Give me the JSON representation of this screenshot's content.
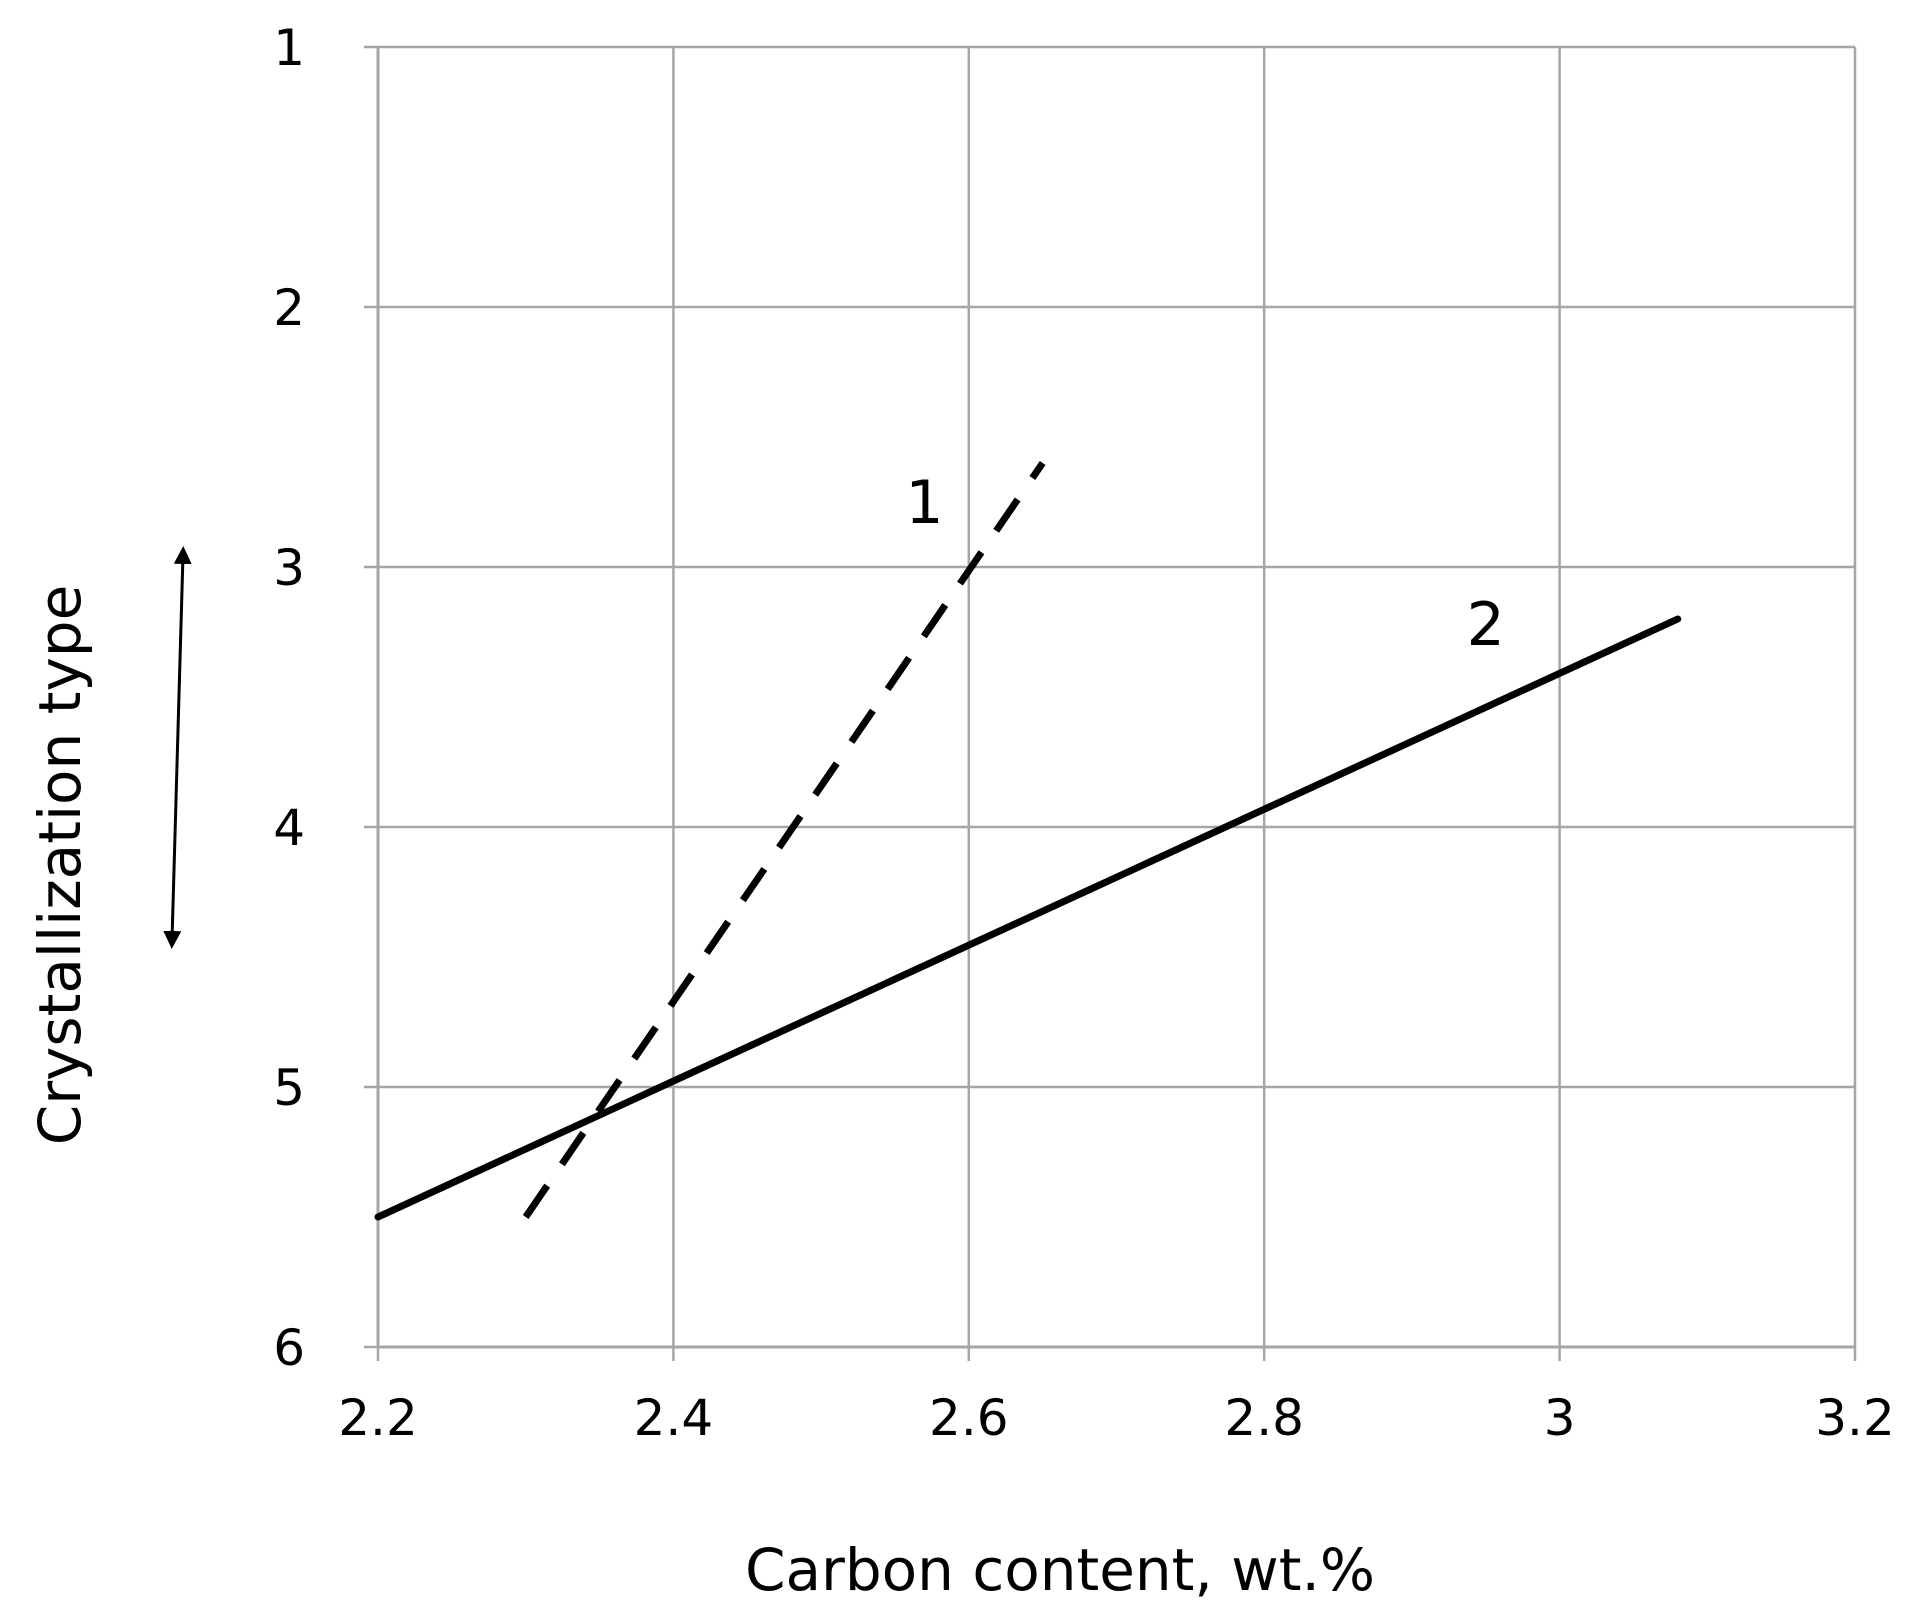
{
  "chart_data": {
    "type": "line",
    "xlabel": "Carbon content, wt.%",
    "ylabel": "Crystallization type",
    "xlim": [
      2.2,
      3.2
    ],
    "ylim": [
      1,
      6
    ],
    "y_inverted": true,
    "grid": true,
    "x_ticks": [
      "2.2",
      "2.4",
      "2.6",
      "2.8",
      "3",
      "3.2"
    ],
    "y_ticks": [
      "1",
      "2",
      "3",
      "4",
      "5",
      "6"
    ],
    "series": [
      {
        "label": "1",
        "style": "dashed",
        "color": "#000000",
        "x": [
          2.3,
          2.65
        ],
        "y": [
          5.5,
          2.6
        ]
      },
      {
        "label": "2",
        "style": "solid",
        "color": "#000000",
        "x": [
          2.2,
          3.08
        ],
        "y": [
          5.5,
          3.2
        ]
      }
    ],
    "annotations": [
      {
        "type": "double-arrow",
        "orientation": "vertical",
        "description": "up/down arrow beside y-axis title"
      }
    ]
  }
}
